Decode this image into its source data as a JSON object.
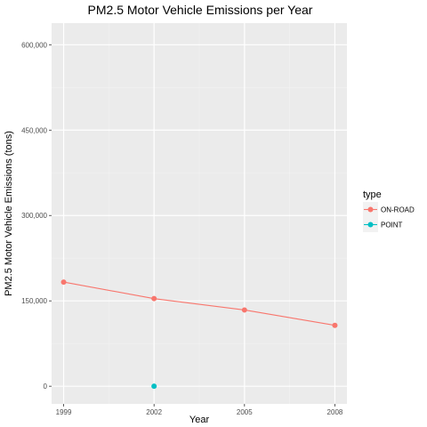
{
  "chart_data": {
    "type": "line",
    "title": "PM2.5 Motor Vehicle Emissions per Year",
    "xlabel": "Year",
    "ylabel": "PM2.5 Motor Vehicle Emissions (tons)",
    "x_ticks": [
      1999,
      2002,
      2005,
      2008
    ],
    "x_tick_labels": [
      "1999",
      "2002",
      "2005",
      "2008"
    ],
    "y_ticks": [
      0,
      150000,
      300000,
      450000,
      600000
    ],
    "y_tick_labels": [
      "0",
      "150,000",
      "300,000",
      "450,000",
      "600,000"
    ],
    "xlim": [
      1998.6,
      2008.4
    ],
    "ylim": [
      -31000,
      638000
    ],
    "grid": true,
    "legend_position": "right",
    "legend_title": "type",
    "series": [
      {
        "name": "ON-ROAD",
        "color": "#F8766D",
        "x": [
          1999,
          2002,
          2005,
          2008
        ],
        "y": [
          183000,
          154000,
          134000,
          107000
        ]
      },
      {
        "name": "POINT",
        "color": "#00BFC4",
        "x": [
          2002
        ],
        "y": [
          0
        ]
      }
    ]
  }
}
